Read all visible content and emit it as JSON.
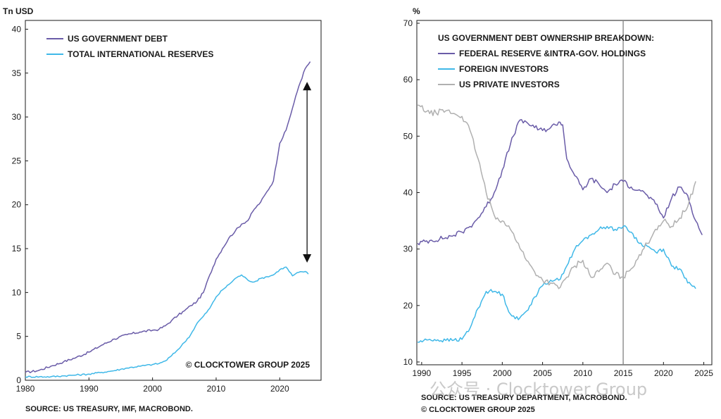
{
  "chart_data": [
    {
      "type": "line",
      "ylabel": "Tn USD",
      "xlim": [
        1980,
        2026.5
      ],
      "ylim": [
        0,
        41
      ],
      "x_ticks": [
        1980,
        1990,
        2000,
        2010,
        2020
      ],
      "y_ticks": [
        0,
        5,
        10,
        15,
        20,
        25,
        30,
        35,
        40
      ],
      "grid": false,
      "legend_position": "top-left",
      "copyright": "© CLOCKTOWER GROUP 2025",
      "source": "SOURCE: US TREASURY, IMF, MACROBOND.",
      "annotation": "double-headed arrow between the two series at 2024 (approx. 13 to 34 Tn USD)",
      "annotation_arrow": {
        "x": 2024.3,
        "y_from": 13.4,
        "y_to": 34.0
      },
      "series": [
        {
          "name": "US GOVERNMENT DEBT",
          "color": "#6a5ca8",
          "points": [
            [
              1980,
              0.9
            ],
            [
              1982,
              1.1
            ],
            [
              1984,
              1.6
            ],
            [
              1986,
              2.1
            ],
            [
              1988,
              2.6
            ],
            [
              1990,
              3.2
            ],
            [
              1992,
              4.0
            ],
            [
              1994,
              4.7
            ],
            [
              1996,
              5.2
            ],
            [
              1998,
              5.5
            ],
            [
              2000,
              5.7
            ],
            [
              2001,
              5.8
            ],
            [
              2002,
              6.2
            ],
            [
              2003,
              6.8
            ],
            [
              2004,
              7.4
            ],
            [
              2005,
              7.9
            ],
            [
              2006,
              8.5
            ],
            [
              2007,
              9.0
            ],
            [
              2008,
              10.0
            ],
            [
              2009,
              12.0
            ],
            [
              2010,
              13.8
            ],
            [
              2011,
              15.0
            ],
            [
              2012,
              16.2
            ],
            [
              2013,
              17.0
            ],
            [
              2014,
              17.8
            ],
            [
              2015,
              18.2
            ],
            [
              2016,
              19.5
            ],
            [
              2017,
              20.3
            ],
            [
              2018,
              21.5
            ],
            [
              2019,
              22.7
            ],
            [
              2020,
              27.0
            ],
            [
              2021,
              28.5
            ],
            [
              2022,
              31.0
            ],
            [
              2023,
              33.5
            ],
            [
              2024,
              35.5
            ],
            [
              2024.8,
              36.3
            ]
          ]
        },
        {
          "name": "TOTAL INTERNATIONAL RESERVES",
          "color": "#3fb8e8",
          "points": [
            [
              1980,
              0.4
            ],
            [
              1984,
              0.4
            ],
            [
              1986,
              0.5
            ],
            [
              1988,
              0.6
            ],
            [
              1990,
              0.7
            ],
            [
              1992,
              0.9
            ],
            [
              1994,
              1.1
            ],
            [
              1996,
              1.4
            ],
            [
              1998,
              1.6
            ],
            [
              2000,
              1.8
            ],
            [
              2001,
              1.9
            ],
            [
              2002,
              2.2
            ],
            [
              2003,
              2.8
            ],
            [
              2004,
              3.5
            ],
            [
              2005,
              4.3
            ],
            [
              2006,
              5.2
            ],
            [
              2007,
              6.5
            ],
            [
              2008,
              7.3
            ],
            [
              2009,
              8.2
            ],
            [
              2010,
              9.5
            ],
            [
              2011,
              10.3
            ],
            [
              2012,
              10.9
            ],
            [
              2013,
              11.6
            ],
            [
              2014,
              12.0
            ],
            [
              2015,
              11.4
            ],
            [
              2016,
              11.2
            ],
            [
              2017,
              11.6
            ],
            [
              2018,
              11.8
            ],
            [
              2019,
              12.0
            ],
            [
              2020,
              12.6
            ],
            [
              2021,
              12.9
            ],
            [
              2022,
              11.9
            ],
            [
              2023,
              12.3
            ],
            [
              2024,
              12.4
            ],
            [
              2024.5,
              12.1
            ]
          ]
        }
      ]
    },
    {
      "type": "line",
      "title": "US GOVERNMENT DEBT OWNERSHIP BREAKDOWN:",
      "ylabel": "%",
      "xlim": [
        1989.4,
        2026
      ],
      "ylim": [
        9.5,
        70.5
      ],
      "x_ticks": [
        1990,
        1995,
        2000,
        2005,
        2010,
        2015,
        2020,
        2025
      ],
      "y_ticks": [
        10,
        20,
        30,
        40,
        50,
        60,
        70
      ],
      "grid": false,
      "vertical_line_x": 2015,
      "legend_position": "top-left",
      "source": "SOURCE: US TREASURY DEPARTMENT, MACROBOND.",
      "copyright": "© CLOCKTOWER GROUP 2025",
      "series": [
        {
          "name": "FEDERAL RESERVE &INTRA-GOV. HOLDINGS",
          "color": "#6a5ca8",
          "points": [
            [
              1989.5,
              31.0
            ],
            [
              1991,
              31.5
            ],
            [
              1993,
              32.0
            ],
            [
              1995,
              33.0
            ],
            [
              1996,
              34.0
            ],
            [
              1997,
              35.5
            ],
            [
              1998,
              37.5
            ],
            [
              1999,
              40.0
            ],
            [
              2000,
              44.0
            ],
            [
              2001,
              48.5
            ],
            [
              2002,
              52.5
            ],
            [
              2003,
              52.5
            ],
            [
              2004,
              51.5
            ],
            [
              2005,
              51.0
            ],
            [
              2006,
              51.5
            ],
            [
              2007,
              52.5
            ],
            [
              2007.5,
              52.0
            ],
            [
              2008,
              46.0
            ],
            [
              2009,
              43.0
            ],
            [
              2010,
              40.5
            ],
            [
              2011,
              42.5
            ],
            [
              2012,
              41.5
            ],
            [
              2013,
              40.0
            ],
            [
              2014,
              41.5
            ],
            [
              2015,
              42.0
            ],
            [
              2016,
              41.0
            ],
            [
              2017,
              40.5
            ],
            [
              2018,
              39.5
            ],
            [
              2019,
              38.0
            ],
            [
              2020,
              35.5
            ],
            [
              2021,
              39.0
            ],
            [
              2022,
              41.0
            ],
            [
              2023,
              39.5
            ],
            [
              2024,
              35.0
            ],
            [
              2024.8,
              32.5
            ]
          ]
        },
        {
          "name": "FOREIGN INVESTORS",
          "color": "#3fb8e8",
          "points": [
            [
              1989.5,
              13.5
            ],
            [
              1991,
              14.0
            ],
            [
              1993,
              13.8
            ],
            [
              1995,
              14.0
            ],
            [
              1996,
              16.0
            ],
            [
              1997,
              19.5
            ],
            [
              1998,
              22.5
            ],
            [
              1999,
              22.5
            ],
            [
              2000,
              22.0
            ],
            [
              2001,
              18.5
            ],
            [
              2002,
              17.5
            ],
            [
              2003,
              19.0
            ],
            [
              2004,
              21.5
            ],
            [
              2005,
              23.5
            ],
            [
              2006,
              24.5
            ],
            [
              2007,
              24.5
            ],
            [
              2008,
              27.0
            ],
            [
              2009,
              30.0
            ],
            [
              2010,
              31.5
            ],
            [
              2011,
              32.5
            ],
            [
              2012,
              33.5
            ],
            [
              2013,
              34.0
            ],
            [
              2014,
              33.5
            ],
            [
              2015,
              34.0
            ],
            [
              2016,
              33.0
            ],
            [
              2017,
              31.0
            ],
            [
              2018,
              30.5
            ],
            [
              2019,
              29.5
            ],
            [
              2020,
              30.0
            ],
            [
              2021,
              27.0
            ],
            [
              2022,
              26.5
            ],
            [
              2023,
              24.0
            ],
            [
              2024,
              23.0
            ]
          ]
        },
        {
          "name": "US PRIVATE INVESTORS",
          "color": "#b0b0b0",
          "points": [
            [
              1989.5,
              55.5
            ],
            [
              1991,
              54.0
            ],
            [
              1993,
              54.5
            ],
            [
              1995,
              53.5
            ],
            [
              1996,
              51.0
            ],
            [
              1997,
              46.0
            ],
            [
              1998,
              40.0
            ],
            [
              1999,
              36.0
            ],
            [
              2000,
              35.0
            ],
            [
              2001,
              33.5
            ],
            [
              2002,
              31.0
            ],
            [
              2003,
              28.0
            ],
            [
              2004,
              26.0
            ],
            [
              2005,
              24.5
            ],
            [
              2006,
              24.0
            ],
            [
              2007,
              23.0
            ],
            [
              2008,
              25.0
            ],
            [
              2009,
              27.0
            ],
            [
              2010,
              28.0
            ],
            [
              2011,
              25.0
            ],
            [
              2012,
              26.0
            ],
            [
              2013,
              27.5
            ],
            [
              2014,
              25.5
            ],
            [
              2015,
              25.0
            ],
            [
              2016,
              26.5
            ],
            [
              2017,
              29.0
            ],
            [
              2018,
              31.0
            ],
            [
              2019,
              33.5
            ],
            [
              2020,
              35.0
            ],
            [
              2021,
              34.0
            ],
            [
              2022,
              35.5
            ],
            [
              2023,
              37.5
            ],
            [
              2024,
              42.0
            ]
          ]
        }
      ]
    }
  ],
  "watermark": "公众号 · Clocktower Group"
}
